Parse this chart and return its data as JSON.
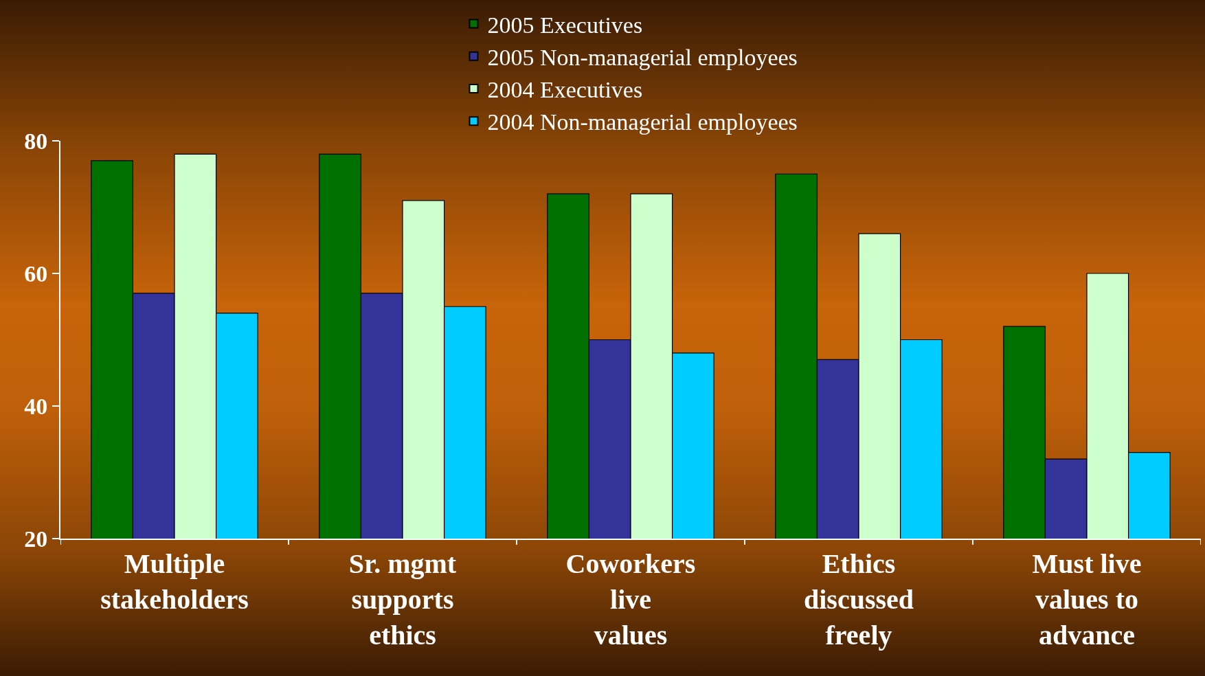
{
  "chart_data": {
    "type": "bar",
    "categories": [
      "Multiple stakeholders",
      "Sr. mgmt supports ethics",
      "Coworkers live values",
      "Ethics discussed freely",
      "Must live values to advance"
    ],
    "series": [
      {
        "name": "2005 Executives",
        "color": "#007000",
        "values": [
          77,
          78,
          72,
          75,
          52
        ]
      },
      {
        "name": "2005 Non-managerial employees",
        "color": "#333399",
        "values": [
          57,
          57,
          50,
          47,
          32
        ]
      },
      {
        "name": "2004 Executives",
        "color": "#ccffcc",
        "values": [
          78,
          71,
          72,
          66,
          60
        ]
      },
      {
        "name": "2004 Non-managerial employees",
        "color": "#00ccff",
        "values": [
          54,
          55,
          48,
          50,
          33
        ]
      }
    ],
    "ylim": [
      20,
      80
    ],
    "yticks": [
      20,
      40,
      60,
      80
    ],
    "grid": false,
    "legend": "top"
  }
}
